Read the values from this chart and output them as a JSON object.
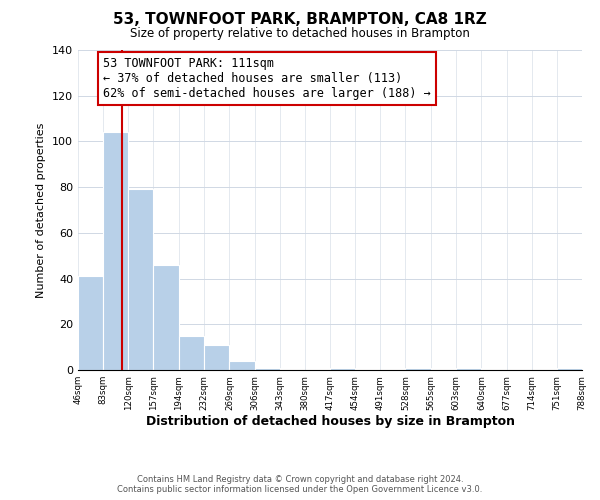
{
  "title": "53, TOWNFOOT PARK, BRAMPTON, CA8 1RZ",
  "subtitle": "Size of property relative to detached houses in Brampton",
  "xlabel": "Distribution of detached houses by size in Brampton",
  "ylabel": "Number of detached properties",
  "bar_edges": [
    46,
    83,
    120,
    157,
    194,
    232,
    269,
    306,
    343,
    380,
    417,
    454,
    491,
    528,
    565,
    603,
    640,
    677,
    714,
    751,
    788
  ],
  "bar_heights": [
    41,
    104,
    79,
    46,
    15,
    11,
    4,
    1,
    0,
    0,
    1,
    0,
    0,
    1,
    0,
    1,
    0,
    0,
    0,
    1
  ],
  "bar_color": "#b8d0e8",
  "bar_edge_color": "#ffffff",
  "vline_x": 111,
  "vline_color": "#cc0000",
  "ylim": [
    0,
    140
  ],
  "yticks": [
    0,
    20,
    40,
    60,
    80,
    100,
    120,
    140
  ],
  "annotation_text": "53 TOWNFOOT PARK: 111sqm\n← 37% of detached houses are smaller (113)\n62% of semi-detached houses are larger (188) →",
  "annotation_box_color": "#ffffff",
  "annotation_box_edge_color": "#cc0000",
  "tick_labels": [
    "46sqm",
    "83sqm",
    "120sqm",
    "157sqm",
    "194sqm",
    "232sqm",
    "269sqm",
    "306sqm",
    "343sqm",
    "380sqm",
    "417sqm",
    "454sqm",
    "491sqm",
    "528sqm",
    "565sqm",
    "603sqm",
    "640sqm",
    "677sqm",
    "714sqm",
    "751sqm",
    "788sqm"
  ],
  "footer_line1": "Contains HM Land Registry data © Crown copyright and database right 2024.",
  "footer_line2": "Contains public sector information licensed under the Open Government Licence v3.0.",
  "background_color": "#ffffff",
  "grid_color": "#d0d8e4"
}
